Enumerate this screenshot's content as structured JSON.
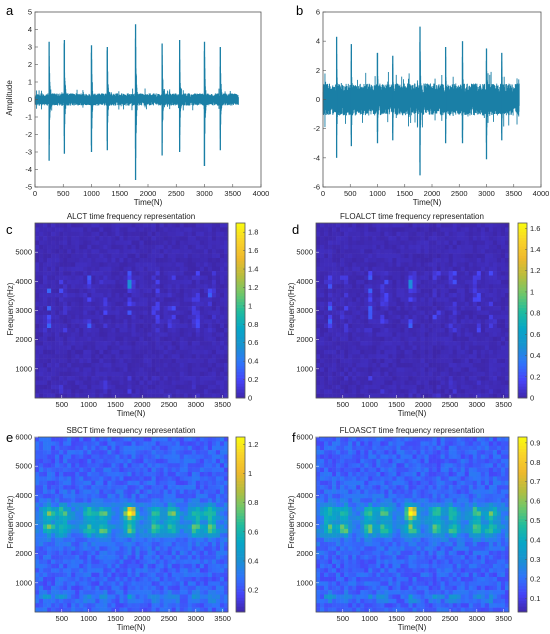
{
  "chart_data": [
    {
      "type": "line",
      "panel": "a",
      "title": "",
      "xlabel": "Time(N)",
      "ylabel": "Amplitude",
      "xlim": [
        0,
        4000
      ],
      "ylim": [
        -5,
        5
      ],
      "xticks": [
        0,
        500,
        1000,
        1500,
        2000,
        2500,
        3000,
        3500,
        4000
      ],
      "yticks": [
        -5,
        -4,
        -3,
        -2,
        -1,
        0,
        1,
        2,
        3,
        4,
        5
      ],
      "signal_length": 3600,
      "color": "#1a7fa6",
      "noise_amplitude": 0.35,
      "impulses": [
        {
          "x": 250,
          "peak": 3.3,
          "trough": -3.5
        },
        {
          "x": 520,
          "peak": 3.4,
          "trough": -3.1
        },
        {
          "x": 1000,
          "peak": 3.1,
          "trough": -3.0
        },
        {
          "x": 1280,
          "peak": 3.0,
          "trough": -2.9
        },
        {
          "x": 1780,
          "peak": 4.3,
          "trough": -4.6
        },
        {
          "x": 2250,
          "peak": 3.2,
          "trough": -3.2
        },
        {
          "x": 2560,
          "peak": 3.4,
          "trough": -3.0
        },
        {
          "x": 3000,
          "peak": 3.3,
          "trough": -3.8
        },
        {
          "x": 3280,
          "peak": 3.0,
          "trough": -2.9
        }
      ]
    },
    {
      "type": "line",
      "panel": "b",
      "title": "",
      "xlabel": "Time(N)",
      "ylabel": "",
      "xlim": [
        0,
        4000
      ],
      "ylim": [
        -6,
        6
      ],
      "xticks": [
        0,
        500,
        1000,
        1500,
        2000,
        2500,
        3000,
        3500,
        4000
      ],
      "yticks": [
        -6,
        -4,
        -2,
        0,
        2,
        4,
        6
      ],
      "signal_length": 3600,
      "color": "#1a7fa6",
      "noise_amplitude": 1.1,
      "impulses": [
        {
          "x": 250,
          "peak": 4.3,
          "trough": -4.0
        },
        {
          "x": 520,
          "peak": 3.8,
          "trough": -3.2
        },
        {
          "x": 1000,
          "peak": 3.2,
          "trough": -3.0
        },
        {
          "x": 1280,
          "peak": 3.0,
          "trough": -2.8
        },
        {
          "x": 1780,
          "peak": 5.0,
          "trough": -5.2
        },
        {
          "x": 2250,
          "peak": 3.6,
          "trough": -3.0
        },
        {
          "x": 2560,
          "peak": 4.0,
          "trough": -3.0
        },
        {
          "x": 3000,
          "peak": 3.5,
          "trough": -4.1
        },
        {
          "x": 3280,
          "peak": 3.2,
          "trough": -2.8
        }
      ]
    },
    {
      "type": "heatmap",
      "panel": "c",
      "title": "ALCT time frequency representation",
      "xlabel": "Time(N)",
      "ylabel": "Frequency(Hz)",
      "xlim": [
        0,
        3600
      ],
      "ylim": [
        0,
        6000
      ],
      "xticks": [
        500,
        1000,
        1500,
        2000,
        2500,
        3000,
        3500
      ],
      "yticks": [
        1000,
        2000,
        3000,
        4000,
        5000
      ],
      "colorbar_ticks": [
        0,
        0.2,
        0.4,
        0.6,
        0.8,
        1,
        1.2,
        1.4,
        1.6,
        1.8
      ],
      "vmax": 1.9,
      "style": "sparse"
    },
    {
      "type": "heatmap",
      "panel": "d",
      "title": "FLOALCT time frequency representation",
      "xlabel": "Time(N)",
      "ylabel": "Frequency(Hz)",
      "xlim": [
        0,
        3600
      ],
      "ylim": [
        0,
        6000
      ],
      "xticks": [
        500,
        1000,
        1500,
        2000,
        2500,
        3000,
        3500
      ],
      "yticks": [
        1000,
        2000,
        3000,
        4000,
        5000
      ],
      "colorbar_ticks": [
        0,
        0.2,
        0.4,
        0.6,
        0.8,
        1,
        1.2,
        1.4,
        1.6
      ],
      "vmax": 1.65,
      "style": "sparse"
    },
    {
      "type": "heatmap",
      "panel": "e",
      "title": "SBCT time frequency representation",
      "xlabel": "Time(N)",
      "ylabel": "Frequency(Hz)",
      "xlim": [
        0,
        3600
      ],
      "ylim": [
        0,
        6000
      ],
      "xticks": [
        500,
        1000,
        1500,
        2000,
        2500,
        3000,
        3500
      ],
      "yticks": [
        1000,
        2000,
        3000,
        4000,
        5000,
        6000
      ],
      "colorbar_ticks": [
        0.2,
        0.4,
        0.6,
        0.8,
        1,
        1.2
      ],
      "vmin": 0.05,
      "vmax": 1.25,
      "style": "smooth"
    },
    {
      "type": "heatmap",
      "panel": "f",
      "title": "FLOASCT time frequency representation",
      "xlabel": "Time(N)",
      "ylabel": "Frequency(Hz)",
      "xlim": [
        0,
        3600
      ],
      "ylim": [
        0,
        6000
      ],
      "xticks": [
        500,
        1000,
        1500,
        2000,
        2500,
        3000,
        3500
      ],
      "yticks": [
        1000,
        2000,
        3000,
        4000,
        5000,
        6000
      ],
      "colorbar_ticks": [
        0.1,
        0.2,
        0.3,
        0.4,
        0.5,
        0.6,
        0.7,
        0.8,
        0.9
      ],
      "vmin": 0.03,
      "vmax": 0.93,
      "style": "smooth"
    }
  ],
  "heatmap_features": {
    "impulse_times": [
      250,
      520,
      1000,
      1280,
      1780,
      2250,
      2560,
      3000,
      3280
    ],
    "band_centers_hz": [
      3400,
      2850,
      500
    ],
    "hot_spot": {
      "time": 1780,
      "freq": 3400
    }
  },
  "colormap": [
    "#3e26a8",
    "#4743f8",
    "#2f74fb",
    "#1993d0",
    "#06a7c6",
    "#22bd9b",
    "#72c768",
    "#b8bd3d",
    "#efb92c",
    "#f9d32a",
    "#f9fb0e"
  ]
}
